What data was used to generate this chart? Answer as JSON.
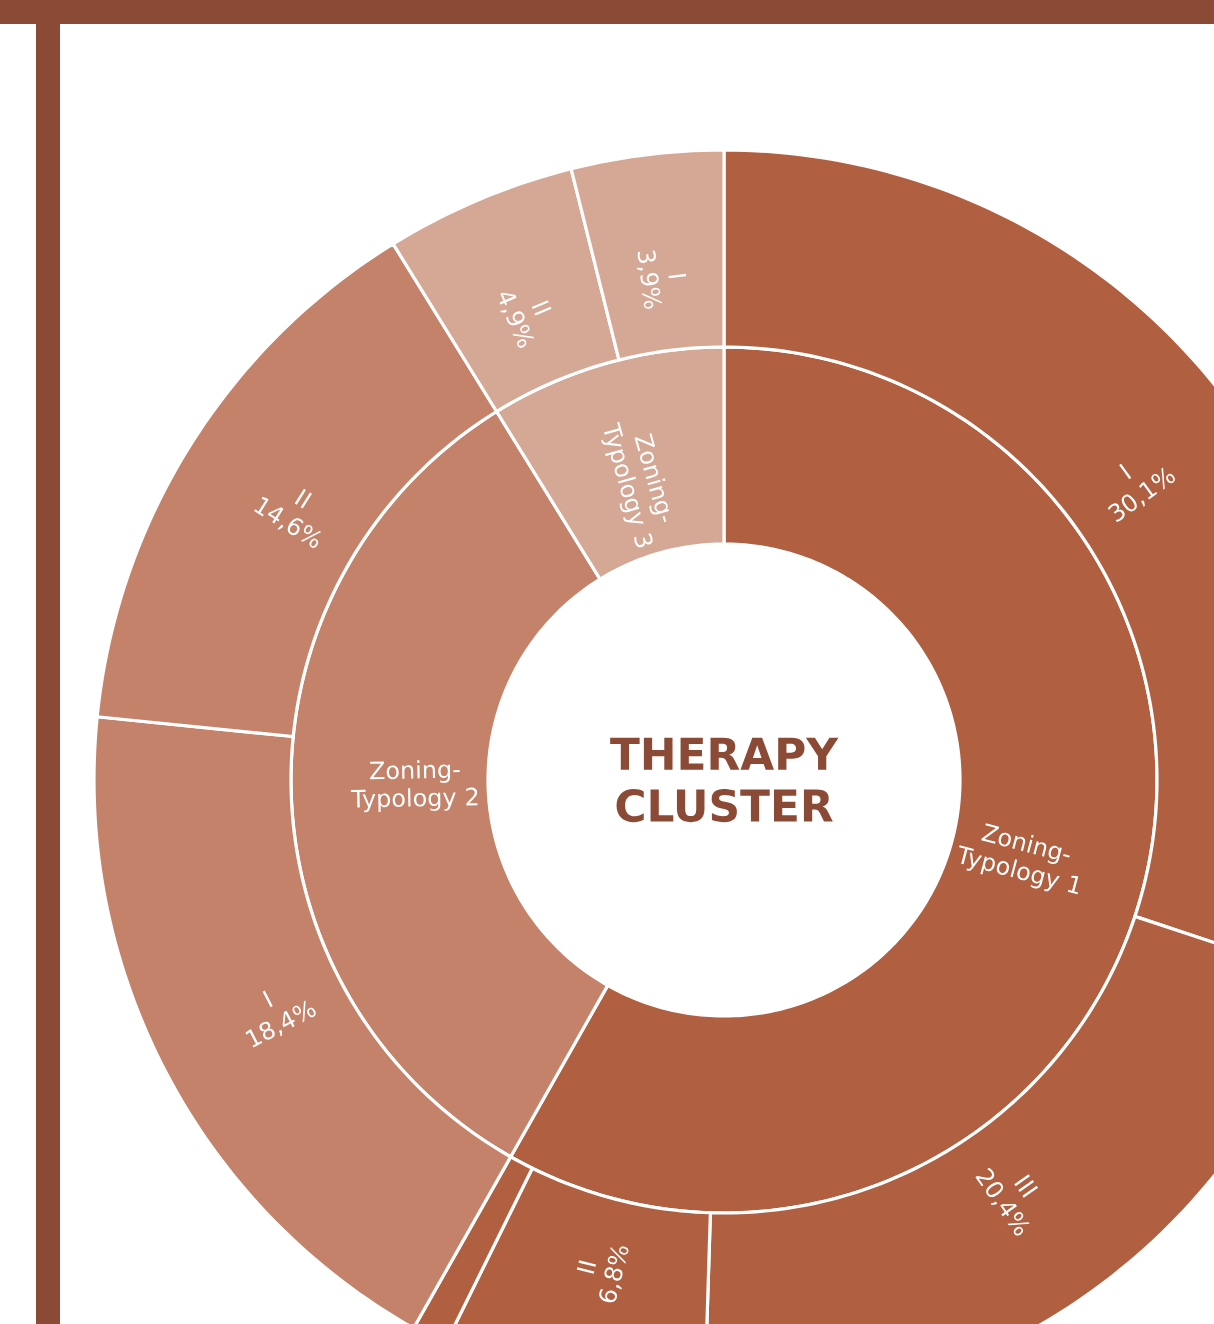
{
  "chart_data": [
    {
      "type": "donut",
      "title": "THERAPY CLUSTER",
      "categories": [
        "Zoning-Typology 1",
        "Zoning-Typology 2",
        "Zoning-Typology 3"
      ],
      "values": [
        58.2,
        33.0,
        8.8
      ],
      "colors": [
        "#b06041",
        "#c4826a",
        "#d5a795"
      ]
    },
    {
      "type": "donut",
      "categories": [
        "I",
        "III",
        "II",
        null,
        "I",
        "II",
        "II",
        "I"
      ],
      "values": [
        30.1,
        20.4,
        6.8,
        0.9,
        18.4,
        14.6,
        4.9,
        3.9
      ],
      "value_labels": [
        "30,1%",
        "20,4%",
        "6,8%",
        null,
        "18,4%",
        "14,6%",
        "4,9%",
        "3,9%"
      ],
      "colors": [
        "#b06041",
        "#b06041",
        "#b06041",
        "#b06041",
        "#c4826a",
        "#c4826a",
        "#d5a795",
        "#d5a795"
      ]
    }
  ]
}
